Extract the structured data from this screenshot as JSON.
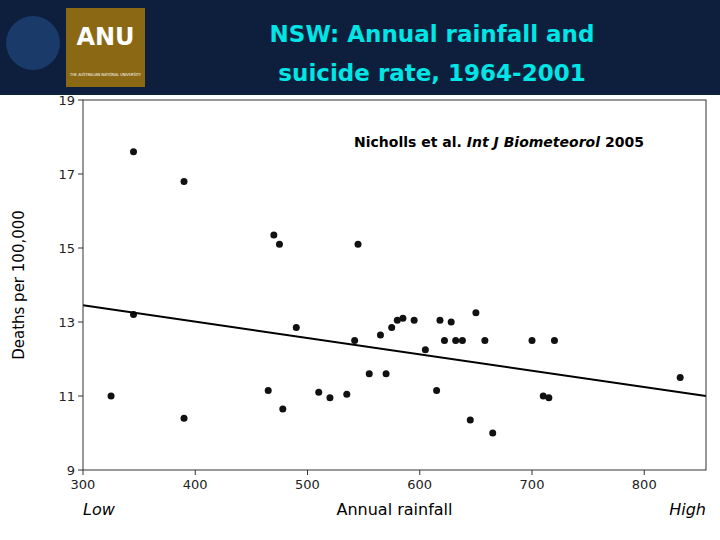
{
  "chart_data": {
    "type": "scatter",
    "title": "NSW: Annual rainfall and\nsuicide rate, 1964-2001",
    "ylabel": "Deaths per 100,000",
    "xlabel": "Annual rainfall",
    "xlabel_low": "Low",
    "xlabel_high": "High",
    "annotations": [
      "Nicholls et al.",
      "Int J Biometeorol",
      "2005"
    ],
    "logo_texts": [
      "ANU",
      "THE AUSTRALIAN NATIONAL UNIVERSITY"
    ],
    "xlim": [
      300,
      855
    ],
    "ylim": [
      9,
      19
    ],
    "xticks": [
      300,
      400,
      500,
      600,
      700,
      800
    ],
    "yticks": [
      9,
      11,
      13,
      15,
      17,
      19
    ],
    "grid": false,
    "series": [
      {
        "type": "scatter",
        "color": "#111111",
        "marker": "circle",
        "x": [
          325,
          345,
          345,
          390,
          390,
          465,
          470,
          475,
          478,
          490,
          510,
          520,
          535,
          542,
          545,
          555,
          565,
          570,
          575,
          580,
          585,
          595,
          605,
          615,
          618,
          622,
          628,
          632,
          638,
          645,
          650,
          658,
          665,
          700,
          710,
          715,
          720,
          832
        ],
        "values": [
          11.0,
          13.2,
          17.6,
          10.4,
          16.8,
          11.15,
          15.35,
          15.1,
          10.65,
          12.85,
          11.1,
          10.95,
          11.05,
          12.5,
          15.1,
          11.6,
          12.65,
          11.6,
          12.85,
          13.05,
          13.1,
          13.05,
          12.25,
          11.15,
          13.05,
          12.5,
          13.0,
          12.5,
          12.5,
          10.35,
          13.25,
          12.5,
          10.0,
          12.5,
          11.0,
          10.95,
          12.5,
          11.5
        ]
      },
      {
        "type": "line",
        "color": "#000000",
        "line_style": "solid",
        "x": [
          300,
          855
        ],
        "values": [
          13.45,
          11.0
        ]
      }
    ]
  }
}
